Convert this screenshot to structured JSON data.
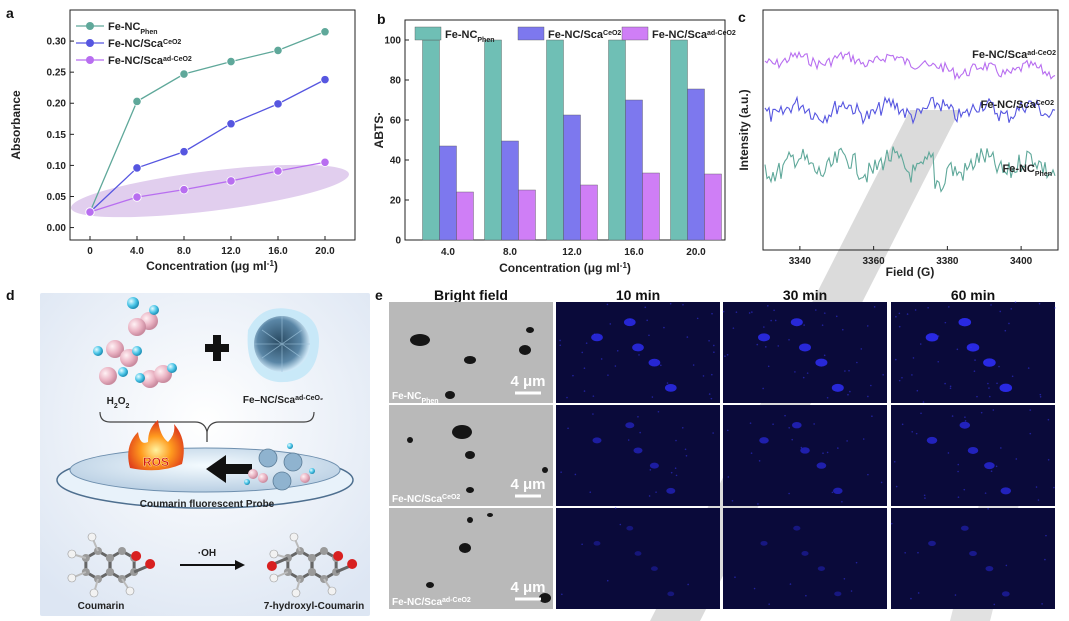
{
  "panels": {
    "a": "a",
    "b": "b",
    "c": "c",
    "d": "d",
    "e": "e"
  },
  "colors": {
    "phen": "#5fa89a",
    "sca": "#5656e0",
    "ad": "#b86ef0",
    "bar_phen": "#6fbfb5",
    "bar_sca": "#7d78ee",
    "bar_ad": "#cf7ef6",
    "ellipse": "#c9a6e0"
  },
  "chart_data": [
    {
      "id": "a",
      "type": "line",
      "xlabel_main": "Concentration (μg ml",
      "xlabel_sup": "-1",
      "xlabel_end": ")",
      "ylabel": "Absorbance",
      "x": [
        0,
        4.0,
        8.0,
        12.0,
        16.0,
        20.0
      ],
      "x_tick_labels": [
        "0",
        "4.0",
        "8.0",
        "12.0",
        "16.0",
        "20.0"
      ],
      "ylim": [
        -0.02,
        0.35
      ],
      "y_ticks": [
        0.0,
        0.05,
        0.1,
        0.15,
        0.2,
        0.25,
        0.3
      ],
      "y_tick_labels": [
        "0.00",
        "0.05",
        "0.10",
        "0.15",
        "0.20",
        "0.25",
        "0.30"
      ],
      "series": [
        {
          "key": "phen",
          "name": "Fe-NC",
          "sub": "Phen",
          "values": [
            0.025,
            0.203,
            0.247,
            0.267,
            0.285,
            0.315
          ]
        },
        {
          "key": "sca",
          "name": "Fe-NC/Sca",
          "sup": "CeO2",
          "values": [
            0.025,
            0.096,
            0.122,
            0.167,
            0.199,
            0.238
          ]
        },
        {
          "key": "ad",
          "name": "Fe-NC/Sca",
          "sup": "ad-CeO2",
          "values": [
            0.025,
            0.049,
            0.061,
            0.075,
            0.091,
            0.105
          ]
        }
      ]
    },
    {
      "id": "b",
      "type": "bar",
      "categories": [
        "4.0",
        "8.0",
        "12.0",
        "16.0",
        "20.0"
      ],
      "xlabel_main": "Concentration (μg ml",
      "xlabel_sup": "-1",
      "xlabel_end": ")",
      "ylabel": "ABTS·",
      "ylim": [
        0,
        110
      ],
      "y_ticks": [
        0,
        20,
        40,
        60,
        80,
        100
      ],
      "series": [
        {
          "key": "phen",
          "name": "Fe-NC",
          "sub": "Phen",
          "values": [
            100,
            100,
            100,
            100,
            100
          ]
        },
        {
          "key": "sca",
          "name": "Fe-NC/Sca",
          "sup": "CeO2",
          "values": [
            47,
            49.5,
            62.5,
            70,
            75.5
          ]
        },
        {
          "key": "ad",
          "name": "Fe-NC/Sca",
          "sup": "ad-CeO2",
          "values": [
            24,
            25,
            27.5,
            33.5,
            33
          ]
        }
      ]
    },
    {
      "id": "c",
      "type": "line",
      "xlabel": "Field (G)",
      "ylabel": "Intensity (a.u.)",
      "xlim": [
        3330,
        3410
      ],
      "x_ticks": [
        3340,
        3360,
        3380,
        3400
      ],
      "series": [
        {
          "key": "ad",
          "name": "Fe-NC/Sca",
          "sup": "ad-CeO2"
        },
        {
          "key": "sca",
          "name": "Fe-NC/Sca",
          "sup": "CeO2"
        },
        {
          "key": "phen",
          "name": "Fe-NC",
          "sub": "Phen"
        }
      ]
    }
  ],
  "panel_d": {
    "h2o2": "H",
    "h2o2_2": "2",
    "h2o2_o": "O",
    "h2o2_3": "2",
    "catalyst": "Fe–NC/Sca",
    "catalyst_sup": "ad-CeO₂",
    "ros": "ROS",
    "probe": "Coumarin fluorescent Probe",
    "oh": "·OH",
    "left_mol": "Coumarin",
    "right_mol": "7-hydroxyl-Coumarin"
  },
  "panel_e": {
    "headers": [
      "Bright field",
      "10 min",
      "30 min",
      "60 min"
    ],
    "scale": "4 μm",
    "rows": [
      {
        "name": "Fe-NC",
        "sub": "Phen",
        "sup": ""
      },
      {
        "name": "Fe-NC/Sca",
        "sub": "",
        "sup": "CeO2"
      },
      {
        "name": "Fe-NC/Sca",
        "sub": "",
        "sup": "ad-CeO2"
      }
    ]
  }
}
